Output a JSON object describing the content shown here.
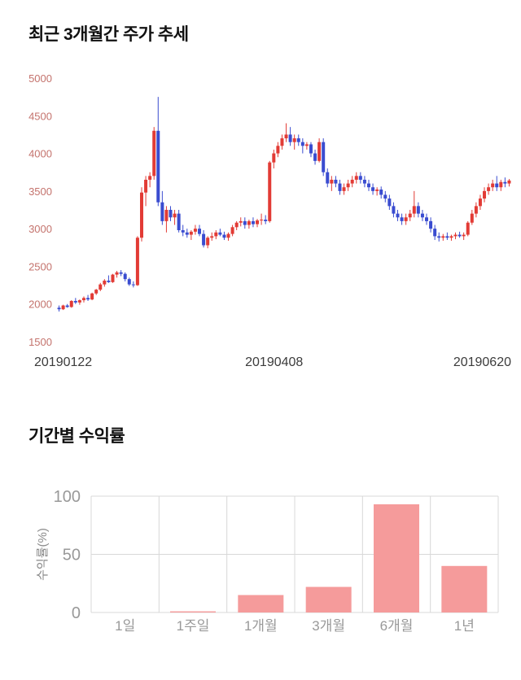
{
  "sections": {
    "price_trend": {
      "title": "최근 3개월간 주가 추세"
    },
    "returns": {
      "title": "기간별 수익률"
    }
  },
  "chart_data": [
    {
      "type": "candlestick",
      "title": "최근 3개월간 주가 추세",
      "ylim": [
        1500,
        5000
      ],
      "yticks": [
        1500,
        2000,
        2500,
        3000,
        3500,
        4000,
        4500,
        5000
      ],
      "xtick_labels": [
        "20190122",
        "20190408",
        "20190620"
      ],
      "colors": {
        "up": "#e23b35",
        "down": "#3a4cd0",
        "ytick_text": "#c4736d",
        "xtick_text": "#3c3c3c"
      },
      "candle_format": "open,high,low,close",
      "candles": [
        [
          1950,
          1980,
          1900,
          1930
        ],
        [
          1930,
          1990,
          1920,
          1980
        ],
        [
          1980,
          2000,
          1950,
          1960
        ],
        [
          1960,
          2050,
          1950,
          2040
        ],
        [
          2040,
          2080,
          2000,
          2020
        ],
        [
          2020,
          2060,
          1990,
          2050
        ],
        [
          2050,
          2100,
          2020,
          2080
        ],
        [
          2080,
          2120,
          2040,
          2060
        ],
        [
          2060,
          2150,
          2050,
          2140
        ],
        [
          2140,
          2200,
          2120,
          2190
        ],
        [
          2190,
          2280,
          2170,
          2260
        ],
        [
          2260,
          2330,
          2230,
          2310
        ],
        [
          2310,
          2380,
          2280,
          2290
        ],
        [
          2290,
          2400,
          2280,
          2390
        ],
        [
          2390,
          2440,
          2350,
          2420
        ],
        [
          2420,
          2450,
          2370,
          2400
        ],
        [
          2400,
          2420,
          2300,
          2330
        ],
        [
          2330,
          2350,
          2240,
          2260
        ],
        [
          2260,
          2300,
          2220,
          2250
        ],
        [
          2250,
          2900,
          2240,
          2880
        ],
        [
          2880,
          3550,
          2830,
          3480
        ],
        [
          3480,
          3700,
          3300,
          3650
        ],
        [
          3650,
          3750,
          3550,
          3700
        ],
        [
          3700,
          4350,
          3650,
          4300
        ],
        [
          4300,
          4750,
          3300,
          3350
        ],
        [
          3350,
          3500,
          3050,
          3100
        ],
        [
          3100,
          3300,
          2950,
          3250
        ],
        [
          3250,
          3300,
          3100,
          3150
        ],
        [
          3150,
          3250,
          3050,
          3200
        ],
        [
          3200,
          3250,
          2950,
          2980
        ],
        [
          2980,
          3050,
          2900,
          2950
        ],
        [
          2950,
          3000,
          2880,
          2920
        ],
        [
          2920,
          2980,
          2850,
          2960
        ],
        [
          2960,
          3050,
          2920,
          3000
        ],
        [
          3000,
          3050,
          2900,
          2930
        ],
        [
          2930,
          2980,
          2750,
          2780
        ],
        [
          2780,
          2900,
          2740,
          2880
        ],
        [
          2880,
          2950,
          2840,
          2900
        ],
        [
          2900,
          2980,
          2860,
          2950
        ],
        [
          2950,
          3000,
          2900,
          2920
        ],
        [
          2920,
          2960,
          2850,
          2880
        ],
        [
          2880,
          2950,
          2840,
          2930
        ],
        [
          2930,
          3050,
          2900,
          3020
        ],
        [
          3020,
          3100,
          2980,
          3080
        ],
        [
          3080,
          3150,
          3030,
          3100
        ],
        [
          3100,
          3150,
          3000,
          3050
        ],
        [
          3050,
          3120,
          3000,
          3100
        ],
        [
          3100,
          3150,
          3020,
          3060
        ],
        [
          3060,
          3130,
          3020,
          3110
        ],
        [
          3110,
          3200,
          3050,
          3120
        ],
        [
          3120,
          3180,
          3060,
          3100
        ],
        [
          3100,
          3900,
          3080,
          3880
        ],
        [
          3880,
          4050,
          3800,
          4000
        ],
        [
          4000,
          4150,
          3950,
          4100
        ],
        [
          4100,
          4250,
          4050,
          4200
        ],
        [
          4200,
          4400,
          4150,
          4250
        ],
        [
          4250,
          4350,
          4100,
          4150
        ],
        [
          4150,
          4250,
          4050,
          4200
        ],
        [
          4200,
          4250,
          4100,
          4150
        ],
        [
          4150,
          4200,
          4000,
          4100
        ],
        [
          4100,
          4150,
          4050,
          4120
        ],
        [
          4120,
          4150,
          3950,
          4000
        ],
        [
          4000,
          4050,
          3850,
          3900
        ],
        [
          3900,
          4200,
          3880,
          4150
        ],
        [
          4150,
          4200,
          3700,
          3750
        ],
        [
          3750,
          3800,
          3550,
          3600
        ],
        [
          3600,
          3700,
          3500,
          3650
        ],
        [
          3650,
          3700,
          3550,
          3600
        ],
        [
          3600,
          3650,
          3450,
          3500
        ],
        [
          3500,
          3600,
          3450,
          3550
        ],
        [
          3550,
          3650,
          3500,
          3600
        ],
        [
          3600,
          3700,
          3550,
          3650
        ],
        [
          3650,
          3750,
          3600,
          3700
        ],
        [
          3700,
          3750,
          3600,
          3650
        ],
        [
          3650,
          3700,
          3550,
          3600
        ],
        [
          3600,
          3650,
          3500,
          3550
        ],
        [
          3550,
          3600,
          3450,
          3500
        ],
        [
          3500,
          3550,
          3440,
          3520
        ],
        [
          3520,
          3560,
          3400,
          3450
        ],
        [
          3450,
          3500,
          3350,
          3400
        ],
        [
          3400,
          3450,
          3250,
          3300
        ],
        [
          3300,
          3350,
          3150,
          3200
        ],
        [
          3200,
          3250,
          3100,
          3150
        ],
        [
          3150,
          3200,
          3050,
          3100
        ],
        [
          3100,
          3200,
          3050,
          3150
        ],
        [
          3150,
          3250,
          3100,
          3200
        ],
        [
          3200,
          3500,
          3150,
          3300
        ],
        [
          3300,
          3350,
          3150,
          3200
        ],
        [
          3200,
          3250,
          3100,
          3150
        ],
        [
          3150,
          3200,
          3050,
          3100
        ],
        [
          3100,
          3150,
          2950,
          3000
        ],
        [
          3000,
          3050,
          2850,
          2900
        ],
        [
          2900,
          2950,
          2830,
          2880
        ],
        [
          2880,
          2930,
          2840,
          2900
        ],
        [
          2900,
          2950,
          2850,
          2880
        ],
        [
          2880,
          2920,
          2840,
          2900
        ],
        [
          2900,
          2950,
          2860,
          2920
        ],
        [
          2920,
          2960,
          2880,
          2900
        ],
        [
          2900,
          2950,
          2850,
          2920
        ],
        [
          2920,
          3100,
          2900,
          3080
        ],
        [
          3080,
          3250,
          3050,
          3200
        ],
        [
          3200,
          3350,
          3150,
          3300
        ],
        [
          3300,
          3450,
          3250,
          3400
        ],
        [
          3400,
          3550,
          3350,
          3500
        ],
        [
          3500,
          3600,
          3450,
          3550
        ],
        [
          3550,
          3650,
          3500,
          3600
        ],
        [
          3600,
          3700,
          3500,
          3550
        ],
        [
          3550,
          3650,
          3500,
          3620
        ],
        [
          3620,
          3680,
          3550,
          3600
        ],
        [
          3600,
          3660,
          3560,
          3640
        ]
      ]
    },
    {
      "type": "bar",
      "title": "기간별 수익률",
      "categories": [
        "1일",
        "1주일",
        "1개월",
        "3개월",
        "6개월",
        "1년"
      ],
      "values": [
        0,
        1,
        15,
        22,
        93,
        40
      ],
      "ylabel": "수익률(%)",
      "ylim": [
        0,
        100
      ],
      "yticks": [
        0,
        50,
        100
      ],
      "bar_color": "#f59b9b",
      "grid_color": "#d8d8d8",
      "legend": "none",
      "grid": true
    }
  ]
}
